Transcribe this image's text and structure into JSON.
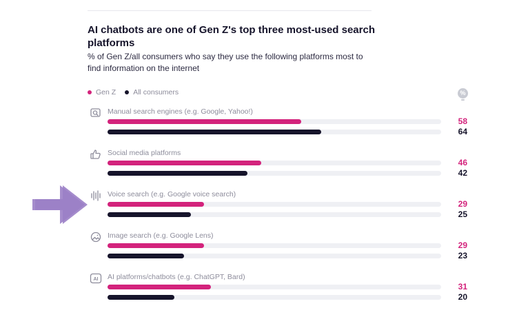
{
  "chart_data": {
    "type": "bar",
    "orientation": "horizontal",
    "title": "AI chatbots are one of Gen Z's top three most-used search platforms",
    "subtitle": "% of Gen Z/all consumers who say they use the following platforms most to find information on the internet",
    "unit_badge": "%",
    "xlim": [
      0,
      100
    ],
    "legend_position": "top-left",
    "categories": [
      "Manual search engines (e.g. Google, Yahoo!)",
      "Social media platforms",
      "Voice search (e.g. Google voice search)",
      "Image search (e.g. Google Lens)",
      "AI platforms/chatbots (e.g. ChatGPT, Bard)"
    ],
    "category_icons": [
      "search-window-icon",
      "thumbs-up-icon",
      "soundwave-icon",
      "image-face-icon",
      "ai-badge-icon"
    ],
    "series": [
      {
        "name": "Gen Z",
        "color": "#d3237c",
        "values": [
          58,
          46,
          29,
          29,
          31
        ]
      },
      {
        "name": "All consumers",
        "color": "#16142b",
        "values": [
          64,
          42,
          25,
          23,
          20
        ]
      }
    ],
    "value_labels": {
      "gen_z": [
        "58",
        "46",
        "29",
        "29",
        "31"
      ],
      "all": [
        "64",
        "42",
        "25",
        "23",
        "20"
      ]
    },
    "highlight_arrows_on": [
      2,
      4
    ],
    "arrow_color": "#9b7fc7"
  }
}
